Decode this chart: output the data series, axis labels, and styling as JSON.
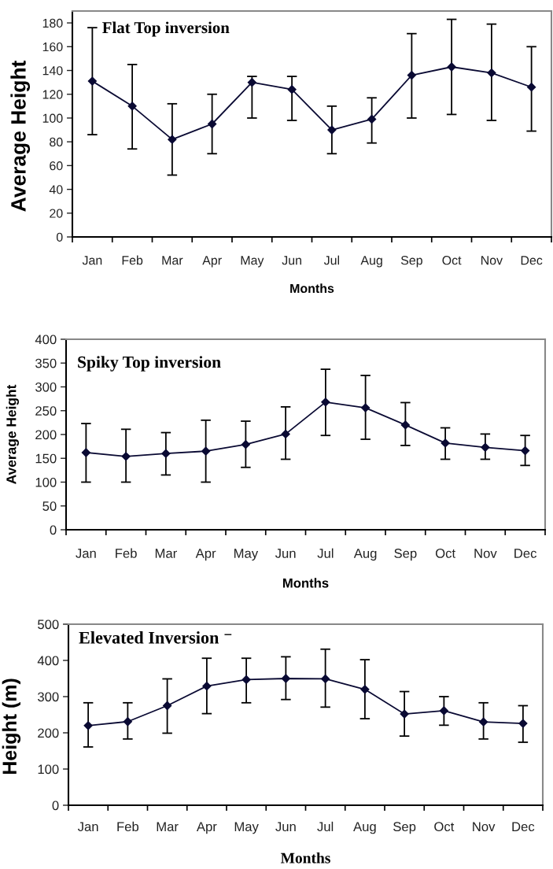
{
  "chart_data": [
    {
      "type": "line",
      "title": "Flat Top inversion",
      "xlabel": "Months",
      "ylabel": "Average Height",
      "categories": [
        "Jan",
        "Feb",
        "Mar",
        "Apr",
        "May",
        "Jun",
        "Jul",
        "Aug",
        "Sep",
        "Oct",
        "Nov",
        "Dec"
      ],
      "values": [
        131,
        110,
        82,
        95,
        130,
        124,
        90,
        99,
        136,
        143,
        138,
        126
      ],
      "errors": [
        [
          86,
          176
        ],
        [
          74,
          145
        ],
        [
          52,
          112
        ],
        [
          70,
          120
        ],
        [
          100,
          135
        ],
        [
          98,
          135
        ],
        [
          70,
          110
        ],
        [
          79,
          117
        ],
        [
          100,
          171
        ],
        [
          103,
          183
        ],
        [
          98,
          179
        ],
        [
          89,
          160
        ]
      ],
      "color": "#0a0a33",
      "ylim": [
        0,
        190
      ],
      "yticks": [
        0,
        20,
        40,
        60,
        80,
        100,
        120,
        140,
        160,
        180
      ],
      "marker": "diamond",
      "line_style": "solid"
    },
    {
      "type": "line",
      "title": "Spiky Top inversion",
      "xlabel": "Months",
      "ylabel": "Average Height",
      "categories": [
        "Jan",
        "Feb",
        "Mar",
        "Apr",
        "May",
        "Jun",
        "Jul",
        "Aug",
        "Sep",
        "Oct",
        "Nov",
        "Dec"
      ],
      "values": [
        162,
        154,
        160,
        165,
        179,
        201,
        268,
        256,
        220,
        182,
        173,
        166
      ],
      "errors": [
        [
          100,
          223
        ],
        [
          100,
          211
        ],
        [
          115,
          204
        ],
        [
          100,
          230
        ],
        [
          131,
          228
        ],
        [
          148,
          258
        ],
        [
          198,
          337
        ],
        [
          190,
          324
        ],
        [
          177,
          267
        ],
        [
          148,
          214
        ],
        [
          148,
          201
        ],
        [
          135,
          198
        ]
      ],
      "color": "#0a0a33",
      "ylim": [
        0,
        400
      ],
      "yticks": [
        0,
        50,
        100,
        150,
        200,
        250,
        300,
        350,
        400
      ],
      "marker": "diamond",
      "line_style": "solid"
    },
    {
      "type": "line",
      "title": "Elevated Inversion ⁻",
      "xlabel": "Months",
      "ylabel": "Height (m)",
      "categories": [
        "Jan",
        "Feb",
        "Mar",
        "Apr",
        "May",
        "Jun",
        "Jul",
        "Aug",
        "Sep",
        "Oct",
        "Nov",
        "Dec"
      ],
      "values": [
        220,
        231,
        275,
        329,
        347,
        350,
        349,
        320,
        252,
        261,
        230,
        226
      ],
      "errors": [
        [
          161,
          283
        ],
        [
          183,
          283
        ],
        [
          199,
          349
        ],
        [
          253,
          406
        ],
        [
          283,
          406
        ],
        [
          292,
          410
        ],
        [
          271,
          431
        ],
        [
          239,
          402
        ],
        [
          191,
          314
        ],
        [
          221,
          300
        ],
        [
          183,
          283
        ],
        [
          174,
          275
        ]
      ],
      "color": "#0a0a33",
      "ylim": [
        0,
        500
      ],
      "yticks": [
        0,
        100,
        200,
        300,
        400,
        500
      ],
      "marker": "diamond",
      "line_style": "solid"
    }
  ]
}
